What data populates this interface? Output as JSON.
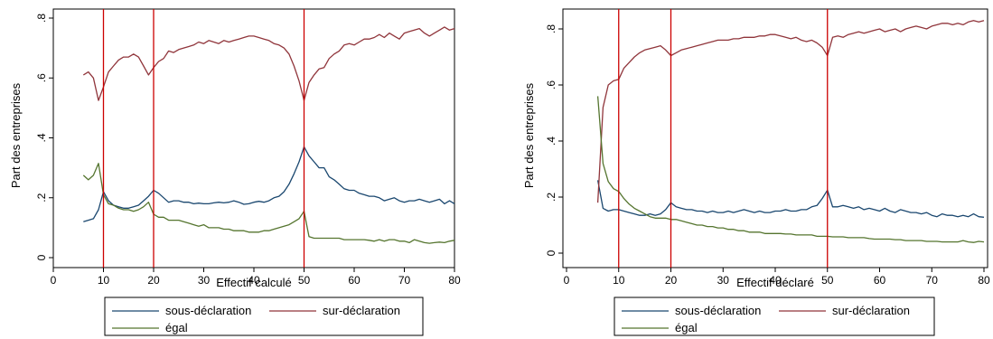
{
  "colors": {
    "sous": "#1a476f",
    "sur": "#90353b",
    "egal": "#55752f",
    "vline": "#cc0000"
  },
  "chart_data": [
    {
      "type": "line",
      "xlabel": "Effectif calculé",
      "ylabel": "Part des entreprises",
      "xlim": [
        0,
        80
      ],
      "ylim": [
        0,
        0.8
      ],
      "xticks": [
        0,
        10,
        20,
        30,
        40,
        50,
        60,
        70,
        80
      ],
      "xtick_labels": [
        "0",
        "10",
        "20",
        "30",
        "40",
        "50",
        "60",
        "70",
        "80"
      ],
      "yticks": [
        0,
        0.2,
        0.4,
        0.6,
        0.8
      ],
      "ytick_labels": [
        "0",
        ".2",
        ".4",
        ".6",
        ".8"
      ],
      "vlines": [
        10,
        20,
        50
      ],
      "legend": {
        "position": "bottom",
        "entries": [
          "sous-déclaration",
          "sur-déclaration",
          "égal"
        ]
      },
      "series": [
        {
          "name": "sous-déclaration",
          "key": "sous",
          "x": [
            6,
            7,
            8,
            9,
            10,
            11,
            12,
            13,
            14,
            15,
            16,
            17,
            18,
            19,
            20,
            21,
            22,
            23,
            24,
            25,
            26,
            27,
            28,
            29,
            30,
            31,
            32,
            33,
            34,
            35,
            36,
            37,
            38,
            39,
            40,
            41,
            42,
            43,
            44,
            45,
            46,
            47,
            48,
            49,
            50,
            51,
            52,
            53,
            54,
            55,
            56,
            57,
            58,
            59,
            60,
            61,
            62,
            63,
            64,
            65,
            66,
            67,
            68,
            69,
            70,
            71,
            72,
            73,
            74,
            75,
            76,
            77,
            78,
            79,
            80
          ],
          "y": [
            0.12,
            0.125,
            0.13,
            0.16,
            0.22,
            0.19,
            0.175,
            0.17,
            0.165,
            0.165,
            0.17,
            0.175,
            0.19,
            0.205,
            0.225,
            0.215,
            0.2,
            0.185,
            0.19,
            0.19,
            0.185,
            0.185,
            0.18,
            0.182,
            0.18,
            0.18,
            0.183,
            0.185,
            0.183,
            0.185,
            0.19,
            0.185,
            0.178,
            0.18,
            0.185,
            0.188,
            0.185,
            0.19,
            0.2,
            0.205,
            0.22,
            0.245,
            0.28,
            0.32,
            0.37,
            0.34,
            0.32,
            0.3,
            0.3,
            0.27,
            0.26,
            0.245,
            0.23,
            0.225,
            0.225,
            0.215,
            0.21,
            0.205,
            0.205,
            0.2,
            0.19,
            0.195,
            0.2,
            0.19,
            0.185,
            0.19,
            0.19,
            0.195,
            0.19,
            0.185,
            0.19,
            0.195,
            0.18,
            0.19,
            0.18
          ]
        },
        {
          "name": "sur-déclaration",
          "key": "sur",
          "x": [
            6,
            7,
            8,
            9,
            10,
            11,
            12,
            13,
            14,
            15,
            16,
            17,
            18,
            19,
            20,
            21,
            22,
            23,
            24,
            25,
            26,
            27,
            28,
            29,
            30,
            31,
            32,
            33,
            34,
            35,
            36,
            37,
            38,
            39,
            40,
            41,
            42,
            43,
            44,
            45,
            46,
            47,
            48,
            49,
            50,
            51,
            52,
            53,
            54,
            55,
            56,
            57,
            58,
            59,
            60,
            61,
            62,
            63,
            64,
            65,
            66,
            67,
            68,
            69,
            70,
            71,
            72,
            73,
            74,
            75,
            76,
            77,
            78,
            79,
            80
          ],
          "y": [
            0.61,
            0.62,
            0.6,
            0.525,
            0.57,
            0.62,
            0.64,
            0.66,
            0.67,
            0.67,
            0.68,
            0.67,
            0.64,
            0.61,
            0.635,
            0.655,
            0.665,
            0.69,
            0.685,
            0.695,
            0.7,
            0.705,
            0.71,
            0.72,
            0.715,
            0.725,
            0.72,
            0.715,
            0.725,
            0.72,
            0.725,
            0.73,
            0.735,
            0.74,
            0.74,
            0.735,
            0.73,
            0.725,
            0.715,
            0.71,
            0.7,
            0.68,
            0.64,
            0.59,
            0.525,
            0.585,
            0.61,
            0.63,
            0.635,
            0.665,
            0.68,
            0.69,
            0.71,
            0.715,
            0.71,
            0.72,
            0.73,
            0.73,
            0.735,
            0.745,
            0.735,
            0.75,
            0.74,
            0.73,
            0.75,
            0.755,
            0.76,
            0.765,
            0.75,
            0.74,
            0.75,
            0.76,
            0.77,
            0.76,
            0.765
          ]
        },
        {
          "name": "égal",
          "key": "egal",
          "x": [
            6,
            7,
            8,
            9,
            10,
            11,
            12,
            13,
            14,
            15,
            16,
            17,
            18,
            19,
            20,
            21,
            22,
            23,
            24,
            25,
            26,
            27,
            28,
            29,
            30,
            31,
            32,
            33,
            34,
            35,
            36,
            37,
            38,
            39,
            40,
            41,
            42,
            43,
            44,
            45,
            46,
            47,
            48,
            49,
            50,
            51,
            52,
            53,
            54,
            55,
            56,
            57,
            58,
            59,
            60,
            61,
            62,
            63,
            64,
            65,
            66,
            67,
            68,
            69,
            70,
            71,
            72,
            73,
            74,
            75,
            76,
            77,
            78,
            79,
            80
          ],
          "y": [
            0.275,
            0.26,
            0.275,
            0.315,
            0.21,
            0.18,
            0.175,
            0.165,
            0.16,
            0.16,
            0.155,
            0.16,
            0.17,
            0.185,
            0.145,
            0.135,
            0.135,
            0.125,
            0.125,
            0.125,
            0.12,
            0.115,
            0.11,
            0.105,
            0.11,
            0.1,
            0.1,
            0.1,
            0.095,
            0.095,
            0.09,
            0.09,
            0.09,
            0.085,
            0.085,
            0.085,
            0.09,
            0.09,
            0.095,
            0.1,
            0.105,
            0.11,
            0.12,
            0.13,
            0.155,
            0.07,
            0.065,
            0.065,
            0.065,
            0.065,
            0.065,
            0.065,
            0.06,
            0.06,
            0.06,
            0.06,
            0.06,
            0.058,
            0.055,
            0.06,
            0.055,
            0.06,
            0.06,
            0.055,
            0.055,
            0.05,
            0.06,
            0.055,
            0.05,
            0.048,
            0.05,
            0.052,
            0.05,
            0.055,
            0.058
          ]
        }
      ]
    },
    {
      "type": "line",
      "xlabel": "Effectif déclaré",
      "ylabel": "Part des entreprises",
      "xlim": [
        0,
        80
      ],
      "ylim": [
        0,
        0.8
      ],
      "xticks": [
        0,
        10,
        20,
        30,
        40,
        50,
        60,
        70,
        80
      ],
      "xtick_labels": [
        "0",
        "10",
        "20",
        "30",
        "40",
        "50",
        "60",
        "70",
        "80"
      ],
      "yticks": [
        0,
        0.2,
        0.4,
        0.6,
        0.8
      ],
      "ytick_labels": [
        "0",
        ".2",
        ".4",
        ".6",
        ".8"
      ],
      "vlines": [
        10,
        20,
        50
      ],
      "legend": {
        "position": "bottom",
        "entries": [
          "sous-déclaration",
          "sur-déclaration",
          "égal"
        ]
      },
      "series": [
        {
          "name": "sous-déclaration",
          "key": "sous",
          "x": [
            6,
            7,
            8,
            9,
            10,
            11,
            12,
            13,
            14,
            15,
            16,
            17,
            18,
            19,
            20,
            21,
            22,
            23,
            24,
            25,
            26,
            27,
            28,
            29,
            30,
            31,
            32,
            33,
            34,
            35,
            36,
            37,
            38,
            39,
            40,
            41,
            42,
            43,
            44,
            45,
            46,
            47,
            48,
            49,
            50,
            51,
            52,
            53,
            54,
            55,
            56,
            57,
            58,
            59,
            60,
            61,
            62,
            63,
            64,
            65,
            66,
            67,
            68,
            69,
            70,
            71,
            72,
            73,
            74,
            75,
            76,
            77,
            78,
            79,
            80
          ],
          "y": [
            0.26,
            0.16,
            0.15,
            0.155,
            0.155,
            0.15,
            0.145,
            0.14,
            0.135,
            0.135,
            0.14,
            0.135,
            0.14,
            0.155,
            0.18,
            0.165,
            0.16,
            0.155,
            0.155,
            0.15,
            0.15,
            0.145,
            0.15,
            0.145,
            0.145,
            0.15,
            0.145,
            0.15,
            0.155,
            0.15,
            0.145,
            0.15,
            0.145,
            0.145,
            0.15,
            0.15,
            0.155,
            0.15,
            0.15,
            0.155,
            0.155,
            0.165,
            0.17,
            0.195,
            0.225,
            0.165,
            0.165,
            0.17,
            0.165,
            0.16,
            0.165,
            0.155,
            0.16,
            0.155,
            0.15,
            0.16,
            0.15,
            0.145,
            0.155,
            0.15,
            0.145,
            0.145,
            0.14,
            0.145,
            0.135,
            0.13,
            0.14,
            0.135,
            0.135,
            0.13,
            0.135,
            0.13,
            0.14,
            0.13,
            0.128
          ]
        },
        {
          "name": "sur-déclaration",
          "key": "sur",
          "x": [
            6,
            7,
            8,
            9,
            10,
            11,
            12,
            13,
            14,
            15,
            16,
            17,
            18,
            19,
            20,
            21,
            22,
            23,
            24,
            25,
            26,
            27,
            28,
            29,
            30,
            31,
            32,
            33,
            34,
            35,
            36,
            37,
            38,
            39,
            40,
            41,
            42,
            43,
            44,
            45,
            46,
            47,
            48,
            49,
            50,
            51,
            52,
            53,
            54,
            55,
            56,
            57,
            58,
            59,
            60,
            61,
            62,
            63,
            64,
            65,
            66,
            67,
            68,
            69,
            70,
            71,
            72,
            73,
            74,
            75,
            76,
            77,
            78,
            79,
            80
          ],
          "y": [
            0.18,
            0.52,
            0.6,
            0.615,
            0.62,
            0.66,
            0.68,
            0.7,
            0.715,
            0.725,
            0.73,
            0.735,
            0.74,
            0.725,
            0.705,
            0.715,
            0.725,
            0.73,
            0.735,
            0.74,
            0.745,
            0.75,
            0.755,
            0.76,
            0.76,
            0.76,
            0.765,
            0.765,
            0.77,
            0.77,
            0.77,
            0.775,
            0.775,
            0.78,
            0.78,
            0.775,
            0.77,
            0.765,
            0.77,
            0.76,
            0.755,
            0.76,
            0.75,
            0.735,
            0.705,
            0.77,
            0.775,
            0.77,
            0.78,
            0.785,
            0.79,
            0.785,
            0.79,
            0.795,
            0.8,
            0.79,
            0.795,
            0.8,
            0.79,
            0.8,
            0.805,
            0.81,
            0.805,
            0.8,
            0.81,
            0.815,
            0.82,
            0.82,
            0.815,
            0.82,
            0.815,
            0.825,
            0.83,
            0.825,
            0.83
          ]
        },
        {
          "name": "égal",
          "key": "egal",
          "x": [
            6,
            7,
            8,
            9,
            10,
            11,
            12,
            13,
            14,
            15,
            16,
            17,
            18,
            19,
            20,
            21,
            22,
            23,
            24,
            25,
            26,
            27,
            28,
            29,
            30,
            31,
            32,
            33,
            34,
            35,
            36,
            37,
            38,
            39,
            40,
            41,
            42,
            43,
            44,
            45,
            46,
            47,
            48,
            49,
            50,
            51,
            52,
            53,
            54,
            55,
            56,
            57,
            58,
            59,
            60,
            61,
            62,
            63,
            64,
            65,
            66,
            67,
            68,
            69,
            70,
            71,
            72,
            73,
            74,
            75,
            76,
            77,
            78,
            79,
            80
          ],
          "y": [
            0.56,
            0.32,
            0.255,
            0.23,
            0.22,
            0.195,
            0.175,
            0.16,
            0.15,
            0.14,
            0.13,
            0.125,
            0.125,
            0.125,
            0.12,
            0.12,
            0.115,
            0.11,
            0.105,
            0.1,
            0.1,
            0.095,
            0.095,
            0.09,
            0.09,
            0.085,
            0.085,
            0.08,
            0.08,
            0.075,
            0.075,
            0.075,
            0.07,
            0.07,
            0.07,
            0.07,
            0.068,
            0.068,
            0.065,
            0.065,
            0.065,
            0.065,
            0.06,
            0.06,
            0.06,
            0.058,
            0.058,
            0.058,
            0.055,
            0.055,
            0.055,
            0.055,
            0.052,
            0.05,
            0.05,
            0.05,
            0.05,
            0.048,
            0.048,
            0.045,
            0.045,
            0.045,
            0.045,
            0.042,
            0.042,
            0.042,
            0.04,
            0.04,
            0.04,
            0.04,
            0.045,
            0.04,
            0.038,
            0.042,
            0.04
          ]
        }
      ]
    }
  ]
}
